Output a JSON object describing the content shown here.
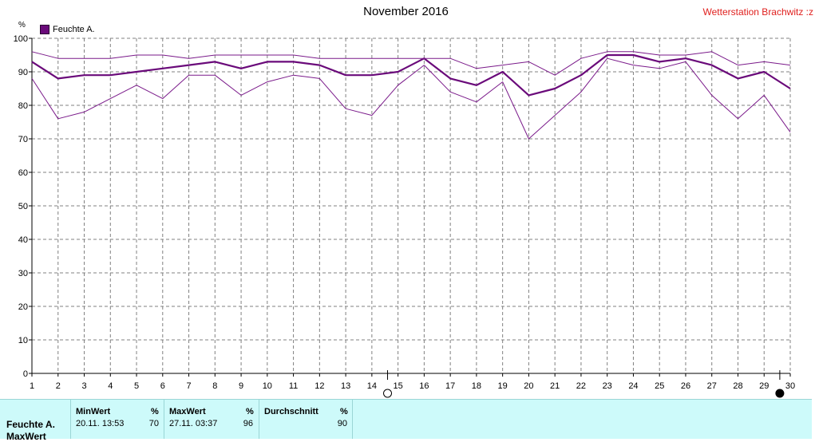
{
  "title": "November 2016",
  "station": "Wetterstation Brachwitz :z",
  "unit": "%",
  "legend": {
    "label": "Feuchte A.",
    "color": "#6a0a7a"
  },
  "chart_data": {
    "type": "line",
    "title": "November 2016",
    "ylabel": "%",
    "ylim": [
      0,
      100
    ],
    "xlim": [
      1,
      30
    ],
    "grid": true,
    "legend_position": "top-left",
    "x": [
      1,
      2,
      3,
      4,
      5,
      6,
      7,
      8,
      9,
      10,
      11,
      12,
      13,
      14,
      15,
      16,
      17,
      18,
      19,
      20,
      21,
      22,
      23,
      24,
      25,
      26,
      27,
      28,
      29,
      30
    ],
    "xticks": [
      "1",
      "2",
      "3",
      "4",
      "5",
      "6",
      "7",
      "8",
      "9",
      "10",
      "11",
      "12",
      "13",
      "14",
      "15",
      "16",
      "17",
      "18",
      "19",
      "20",
      "21",
      "22",
      "23",
      "24",
      "25",
      "26",
      "27",
      "28",
      "29",
      "30"
    ],
    "yticks": [
      0,
      10,
      20,
      30,
      40,
      50,
      60,
      70,
      80,
      90,
      100
    ],
    "series": [
      {
        "name": "Feuchte A.",
        "role": "avg",
        "color": "#6a0a7a",
        "values": [
          93,
          88,
          89,
          89,
          90,
          91,
          92,
          93,
          91,
          93,
          93,
          92,
          89,
          89,
          90,
          94,
          88,
          86,
          90,
          83,
          85,
          89,
          95,
          95,
          93,
          94,
          92,
          88,
          90,
          85
        ]
      },
      {
        "role": "max",
        "color": "#7a1a8a",
        "values": [
          96,
          94,
          94,
          94,
          95,
          95,
          94,
          95,
          95,
          95,
          95,
          94,
          94,
          94,
          94,
          94,
          94,
          91,
          92,
          93,
          89,
          94,
          96,
          96,
          95,
          95,
          96,
          92,
          93,
          92
        ]
      },
      {
        "role": "min",
        "color": "#7a1a8a",
        "values": [
          88,
          76,
          78,
          82,
          86,
          82,
          89,
          89,
          83,
          87,
          89,
          88,
          79,
          77,
          86,
          92,
          84,
          81,
          87,
          70,
          77,
          84,
          94,
          92,
          91,
          93,
          83,
          76,
          83,
          72
        ]
      }
    ],
    "moon_phases": [
      {
        "day": 14.6,
        "phase": "full"
      },
      {
        "day": 29.6,
        "phase": "new"
      }
    ]
  },
  "stats": {
    "series_name": "Feuchte A.",
    "series_sub": "MaxWert",
    "min": {
      "header": "MinWert",
      "unit": "%",
      "timestamp": "20.11.  13:53",
      "value": "70"
    },
    "max": {
      "header": "MaxWert",
      "unit": "%",
      "timestamp": "27.11.  03:37",
      "value": "96"
    },
    "avg": {
      "header": "Durchschnitt",
      "unit": "%",
      "value": "90"
    }
  }
}
